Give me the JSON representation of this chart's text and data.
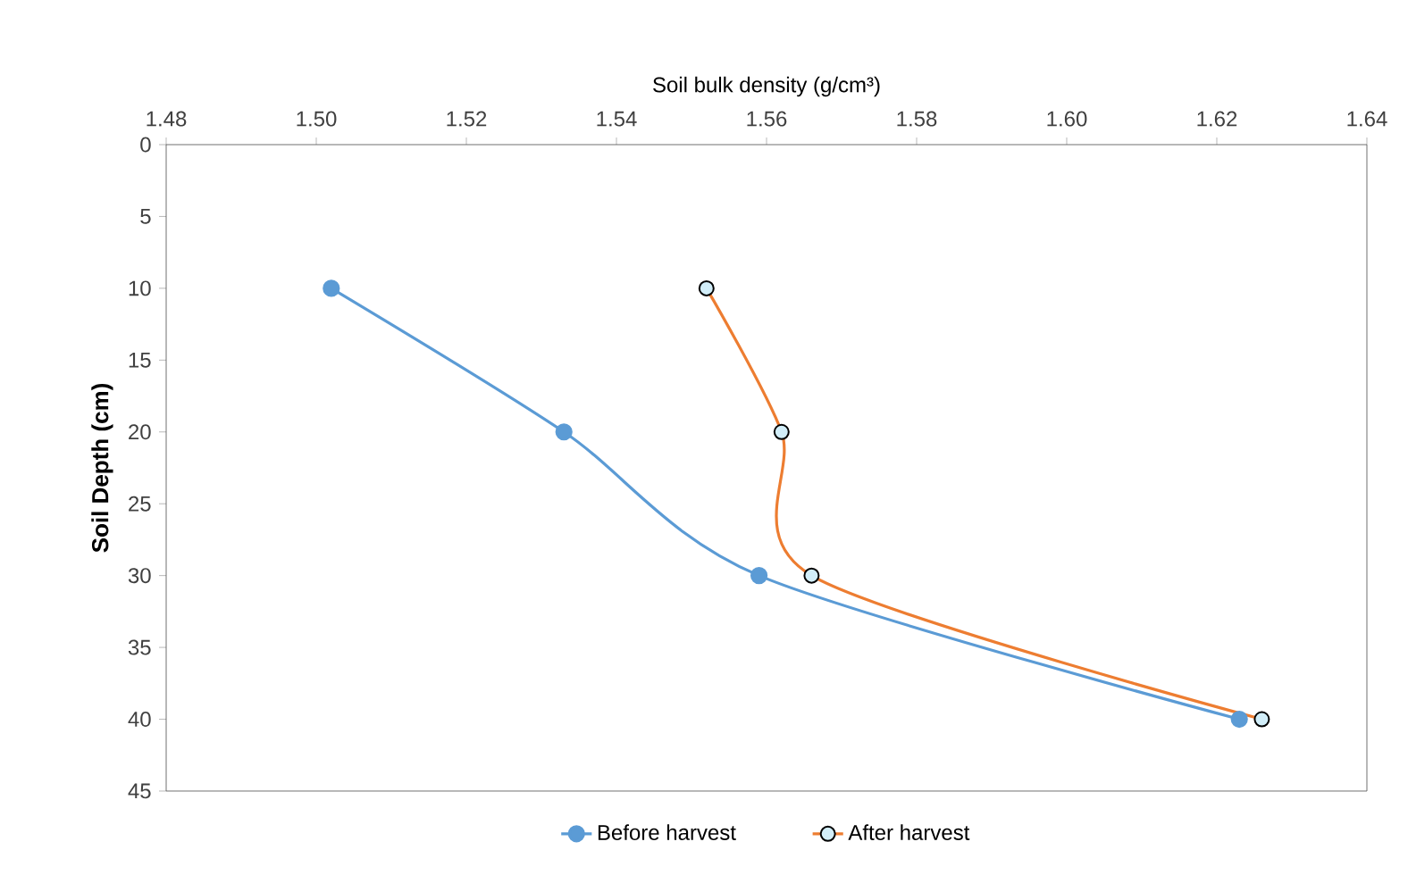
{
  "chart_data": {
    "type": "line",
    "xlabel": "Soil bulk density (g/cm³)",
    "ylabel": "Soil Depth (cm)",
    "xlim": [
      1.48,
      1.64
    ],
    "xticks": [
      1.48,
      {
        "value": 1.5,
        "label": "1.50"
      },
      1.52,
      1.54,
      1.56,
      1.58,
      {
        "value": 1.6,
        "label": "1.60"
      },
      1.62,
      1.64
    ],
    "ylim": [
      45,
      0
    ],
    "yticks": [
      0,
      5,
      10,
      15,
      20,
      25,
      30,
      35,
      40,
      45
    ],
    "marker": "circle",
    "legend": "bottom",
    "grid": false,
    "series": [
      {
        "name": "Before harvest",
        "color": "#5b9bd5",
        "x": [
          1.502,
          1.533,
          1.559,
          1.623
        ],
        "values": [
          10,
          20,
          30,
          40
        ]
      },
      {
        "name": "After harvest",
        "color": "#ed7d31",
        "x": [
          1.552,
          1.562,
          1.566,
          1.626
        ],
        "values": [
          10,
          20,
          30,
          40
        ]
      }
    ]
  }
}
